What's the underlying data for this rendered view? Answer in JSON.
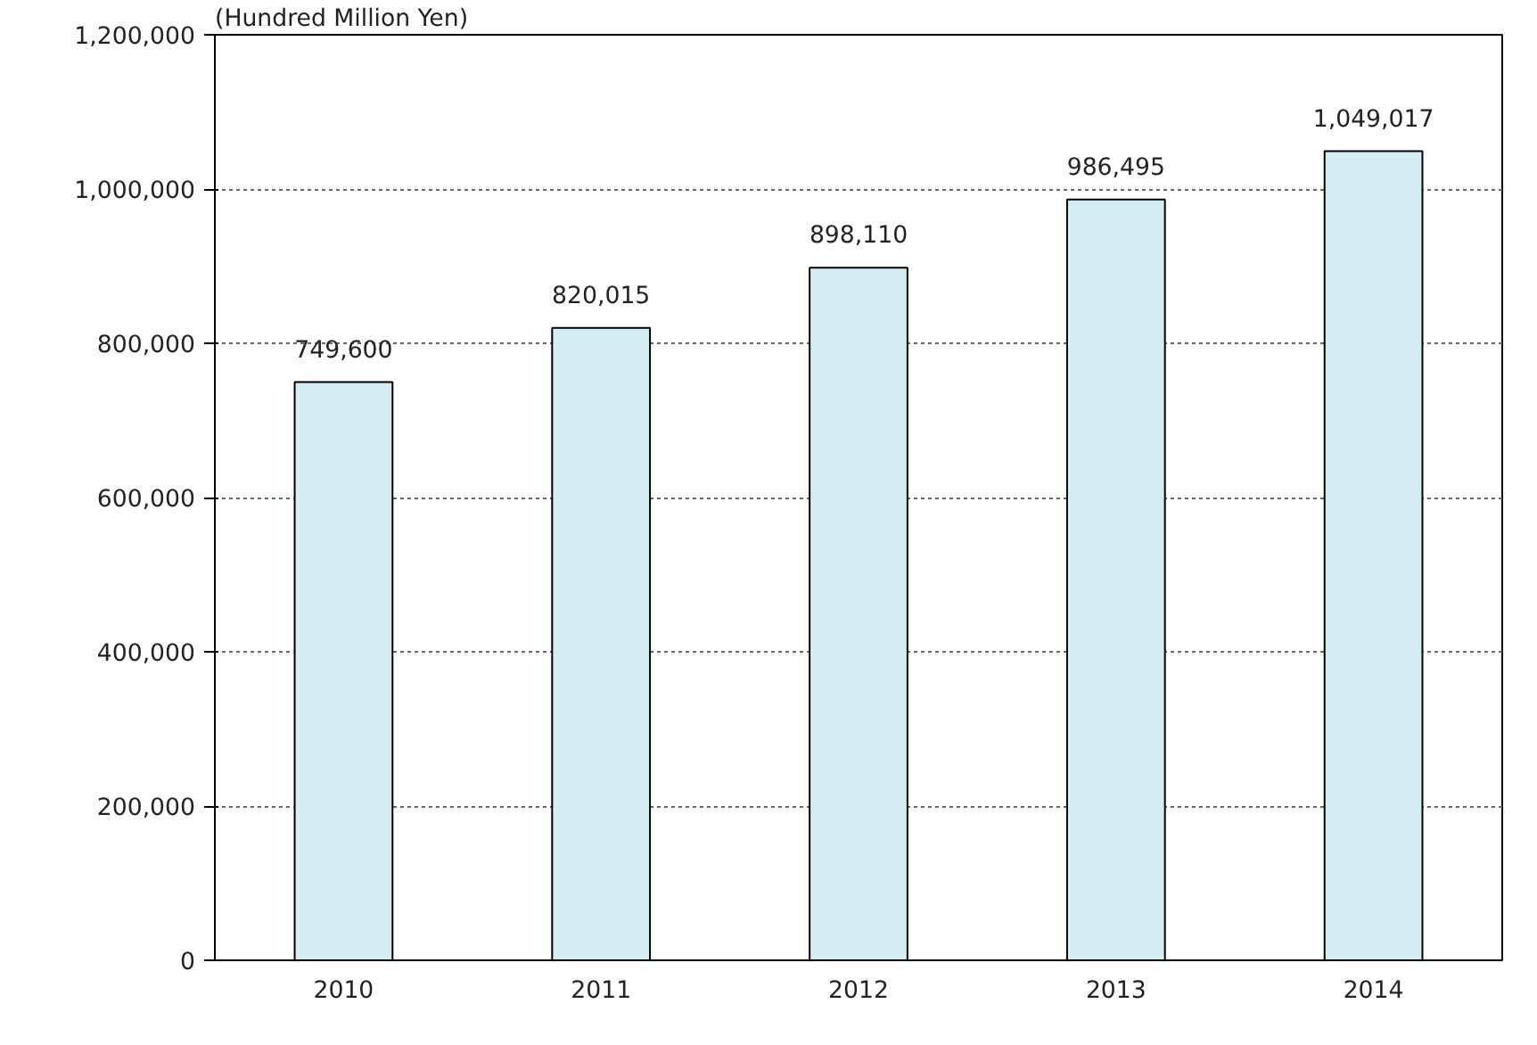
{
  "chart_data": {
    "type": "bar",
    "ylabel": "(Hundred Million Yen)",
    "categories": [
      "2010",
      "2011",
      "2012",
      "2013",
      "2014"
    ],
    "values": [
      749600,
      820015,
      898110,
      986495,
      1049017
    ],
    "color": "#d4eef4",
    "ylim": [
      0,
      1200000
    ],
    "yticks": [
      {
        "value": 0,
        "label": "0"
      },
      {
        "value": 200000,
        "label": "200,000"
      },
      {
        "value": 400000,
        "label": "400,000"
      },
      {
        "value": 600000,
        "label": "600,000"
      },
      {
        "value": 800000,
        "label": "800,000"
      },
      {
        "value": 1000000,
        "label": "1,000,000"
      },
      {
        "value": 1200000,
        "label": "1,200,000"
      }
    ],
    "value_labels": [
      "749,600",
      "820,015",
      "898,110",
      "986,495",
      "1,049,017"
    ],
    "grid": "y"
  }
}
